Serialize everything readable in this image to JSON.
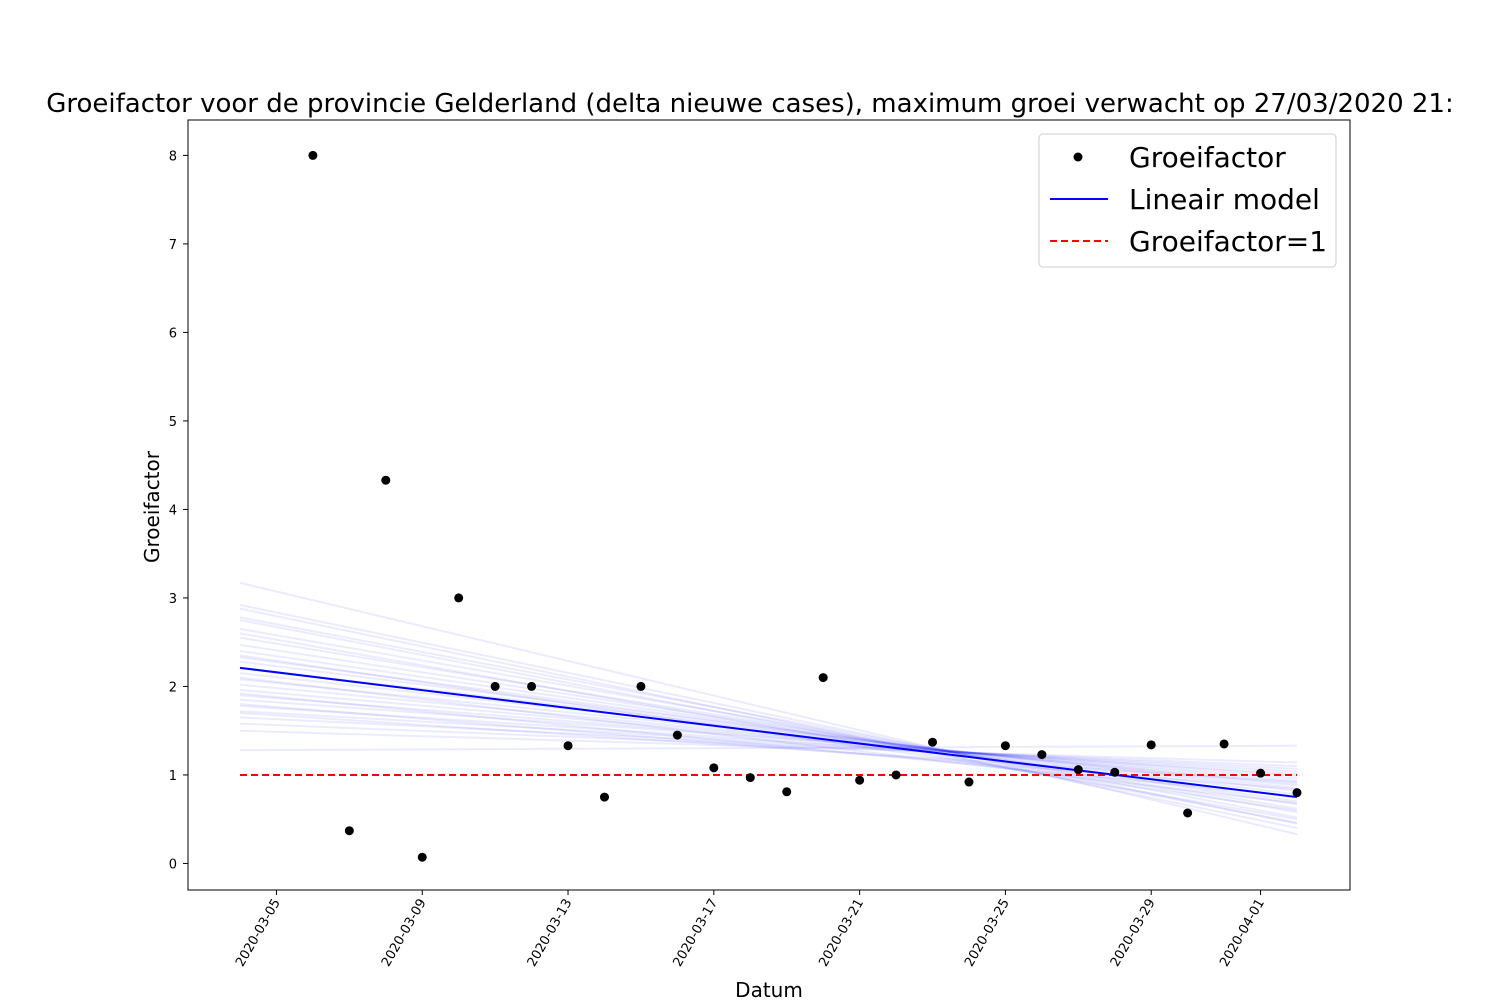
{
  "chart_data": {
    "type": "scatter",
    "title": "Groeifactor voor de provincie Gelderland (delta nieuwe cases), maximum groei verwacht op 27/03/2020 21:",
    "xlabel": "Datum",
    "ylabel": "Groeifactor",
    "xlim": [
      "2020-03-04",
      "2020-04-02"
    ],
    "ylim": [
      -0.3,
      8.4
    ],
    "x_ticks": [
      "2020-03-05",
      "2020-03-09",
      "2020-03-13",
      "2020-03-17",
      "2020-03-21",
      "2020-03-25",
      "2020-03-29",
      "2020-04-01"
    ],
    "y_ticks": [
      0,
      1,
      2,
      3,
      4,
      5,
      6,
      7,
      8
    ],
    "legend_position": "top-right",
    "series": [
      {
        "name": "Groeifactor",
        "kind": "points",
        "color": "#000000",
        "points": [
          {
            "x": "2020-03-06",
            "y": 8.0
          },
          {
            "x": "2020-03-07",
            "y": 0.37
          },
          {
            "x": "2020-03-08",
            "y": 4.33
          },
          {
            "x": "2020-03-09",
            "y": 0.07
          },
          {
            "x": "2020-03-10",
            "y": 3.0
          },
          {
            "x": "2020-03-11",
            "y": 2.0
          },
          {
            "x": "2020-03-12",
            "y": 2.0
          },
          {
            "x": "2020-03-13",
            "y": 1.33
          },
          {
            "x": "2020-03-14",
            "y": 0.75
          },
          {
            "x": "2020-03-15",
            "y": 2.0
          },
          {
            "x": "2020-03-16",
            "y": 1.45
          },
          {
            "x": "2020-03-17",
            "y": 1.08
          },
          {
            "x": "2020-03-18",
            "y": 0.97
          },
          {
            "x": "2020-03-19",
            "y": 0.81
          },
          {
            "x": "2020-03-20",
            "y": 2.1
          },
          {
            "x": "2020-03-21",
            "y": 0.94
          },
          {
            "x": "2020-03-22",
            "y": 1.0
          },
          {
            "x": "2020-03-23",
            "y": 1.37
          },
          {
            "x": "2020-03-24",
            "y": 0.92
          },
          {
            "x": "2020-03-25",
            "y": 1.33
          },
          {
            "x": "2020-03-26",
            "y": 1.23
          },
          {
            "x": "2020-03-27",
            "y": 1.06
          },
          {
            "x": "2020-03-28",
            "y": 1.03
          },
          {
            "x": "2020-03-29",
            "y": 1.34
          },
          {
            "x": "2020-03-30",
            "y": 0.57
          },
          {
            "x": "2020-03-31",
            "y": 1.35
          },
          {
            "x": "2020-04-01",
            "y": 1.02
          },
          {
            "x": "2020-04-02",
            "y": 0.8
          }
        ]
      },
      {
        "name": "Lineair model",
        "kind": "line",
        "color": "#0000ff",
        "points": [
          {
            "x": "2020-03-04",
            "y": 2.21
          },
          {
            "x": "2020-04-02",
            "y": 0.75
          }
        ]
      },
      {
        "name": "Groeifactor=1",
        "kind": "dashed-line",
        "color": "#ff0000",
        "points": [
          {
            "x": "2020-03-04",
            "y": 1.0
          },
          {
            "x": "2020-04-02",
            "y": 1.0
          }
        ]
      }
    ],
    "model_samples": {
      "color": "#0000ff",
      "lines": [
        [
          3.17,
          0.33
        ],
        [
          2.92,
          0.45
        ],
        [
          2.78,
          0.52
        ],
        [
          2.65,
          0.58
        ],
        [
          2.55,
          0.62
        ],
        [
          2.47,
          0.67
        ],
        [
          2.4,
          0.7
        ],
        [
          2.33,
          0.74
        ],
        [
          2.28,
          0.78
        ],
        [
          2.21,
          0.82
        ],
        [
          2.15,
          0.85
        ],
        [
          2.08,
          0.88
        ],
        [
          2.02,
          0.9
        ],
        [
          1.96,
          0.93
        ],
        [
          1.9,
          0.96
        ],
        [
          1.85,
          0.99
        ],
        [
          1.78,
          1.01
        ],
        [
          1.72,
          1.04
        ],
        [
          1.65,
          1.07
        ],
        [
          1.58,
          1.1
        ],
        [
          1.5,
          1.14
        ],
        [
          1.28,
          1.33
        ],
        [
          2.88,
          0.4
        ],
        [
          2.6,
          0.5
        ],
        [
          2.35,
          0.6
        ],
        [
          2.1,
          0.68
        ],
        [
          1.92,
          0.76
        ],
        [
          1.8,
          0.84
        ],
        [
          1.7,
          0.92
        ],
        [
          2.75,
          0.46
        ]
      ]
    }
  }
}
